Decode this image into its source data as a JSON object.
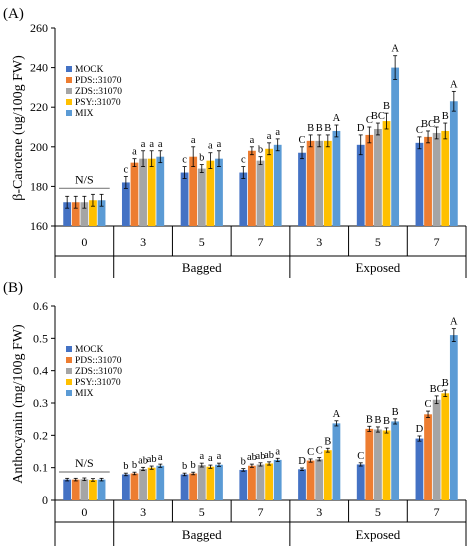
{
  "colors": {
    "MOCK": "#4472C4",
    "PDS::31070": "#ED7D31",
    "ZDS::31070": "#A5A5A5",
    "PSY::31070": "#FFC000",
    "MIX": "#5B9BD5",
    "axis": "#000000",
    "bracket": "#808080"
  },
  "chart_data": [
    {
      "type": "bar",
      "panel_label": "(A)",
      "ylabel": "β-Carotene (ug/100g FW)",
      "ylim": [
        160,
        260
      ],
      "yticks": [
        160,
        180,
        200,
        220,
        240,
        260
      ],
      "categories": [
        "0",
        "3",
        "5",
        "7",
        "3",
        "5",
        "7"
      ],
      "groups": [
        {
          "label": "Bagged",
          "categories": [
            1,
            2,
            3
          ]
        },
        {
          "label": "Exposed",
          "categories": [
            4,
            5,
            6
          ]
        }
      ],
      "legend_position": "left",
      "ns_label": "N/S",
      "series": [
        {
          "name": "MOCK",
          "values": [
            172,
            182,
            187,
            187,
            197,
            201,
            202
          ],
          "errors": [
            3,
            3,
            3,
            3,
            3,
            5,
            3
          ]
        },
        {
          "name": "PDS::31070",
          "values": [
            172,
            192,
            195,
            198,
            203,
            206,
            205
          ],
          "errors": [
            3,
            2,
            5,
            2,
            3,
            4,
            3
          ]
        },
        {
          "name": "ZDS::31070",
          "values": [
            172,
            194,
            189,
            193,
            203,
            209,
            207
          ],
          "errors": [
            3,
            4,
            2,
            2,
            3,
            3,
            3
          ]
        },
        {
          "name": "PSY::31070",
          "values": [
            173,
            194,
            193,
            199,
            203,
            213,
            208
          ],
          "errors": [
            3,
            4,
            4,
            3,
            3,
            4,
            4
          ]
        },
        {
          "name": "MIX",
          "values": [
            173,
            195,
            194,
            201,
            208,
            240,
            223
          ],
          "errors": [
            3,
            3,
            4,
            3,
            3,
            6,
            5
          ]
        }
      ],
      "annotations": [
        [],
        [
          "c",
          "a",
          "a",
          "a",
          "a"
        ],
        [
          "c",
          "a",
          "b",
          "a",
          "a"
        ],
        [
          "c",
          "a",
          "b",
          "a",
          "a"
        ],
        [
          "C",
          "B",
          "B",
          "B",
          "A"
        ],
        [
          "D",
          "C",
          "BC",
          "B",
          "A"
        ],
        [
          "C",
          "BC",
          "B",
          "B",
          "A"
        ]
      ]
    },
    {
      "type": "bar",
      "panel_label": "(B)",
      "ylabel": "Anthocyanin (mg/100g FW)",
      "ylim": [
        0,
        0.6
      ],
      "yticks": [
        0,
        0.1,
        0.2,
        0.3,
        0.4,
        0.5,
        0.6
      ],
      "ytick_labels": [
        "0",
        "0.1",
        "0.2",
        "0.3",
        "0.4",
        "0.5",
        "0.6"
      ],
      "categories": [
        "0",
        "3",
        "5",
        "7",
        "3",
        "5",
        "7"
      ],
      "groups": [
        {
          "label": "Bagged",
          "categories": [
            1,
            2,
            3
          ]
        },
        {
          "label": "Exposed",
          "categories": [
            4,
            5,
            6
          ]
        }
      ],
      "legend_position": "left",
      "ns_label": "N/S",
      "series": [
        {
          "name": "MOCK",
          "values": [
            0.063,
            0.079,
            0.079,
            0.093,
            0.095,
            0.11,
            0.19
          ],
          "errors": [
            0.004,
            0.004,
            0.004,
            0.004,
            0.004,
            0.005,
            0.008
          ]
        },
        {
          "name": "PDS::31070",
          "values": [
            0.063,
            0.082,
            0.082,
            0.106,
            0.122,
            0.22,
            0.265
          ],
          "errors": [
            0.004,
            0.004,
            0.004,
            0.005,
            0.005,
            0.008,
            0.01
          ]
        },
        {
          "name": "ZDS::31070",
          "values": [
            0.064,
            0.096,
            0.108,
            0.11,
            0.126,
            0.218,
            0.31
          ],
          "errors": [
            0.004,
            0.005,
            0.006,
            0.005,
            0.005,
            0.008,
            0.012
          ]
        },
        {
          "name": "PSY::31070",
          "values": [
            0.062,
            0.1,
            0.103,
            0.113,
            0.154,
            0.215,
            0.33
          ],
          "errors": [
            0.004,
            0.005,
            0.005,
            0.005,
            0.006,
            0.008,
            0.01
          ]
        },
        {
          "name": "MIX",
          "values": [
            0.063,
            0.106,
            0.109,
            0.124,
            0.237,
            0.243,
            0.51
          ],
          "errors": [
            0.004,
            0.005,
            0.005,
            0.005,
            0.008,
            0.008,
            0.02
          ]
        }
      ],
      "annotations": [
        [],
        [
          "b",
          "b",
          "ab",
          "ab",
          "a"
        ],
        [
          "b",
          "b",
          "a",
          "a",
          "a"
        ],
        [
          "b",
          "ab",
          "ab",
          "ab",
          "a"
        ],
        [
          "D",
          "C",
          "C",
          "B",
          "A"
        ],
        [
          "C",
          "B",
          "B",
          "B",
          "B"
        ],
        [
          "D",
          "C",
          "BC",
          "B",
          "A"
        ]
      ]
    }
  ]
}
